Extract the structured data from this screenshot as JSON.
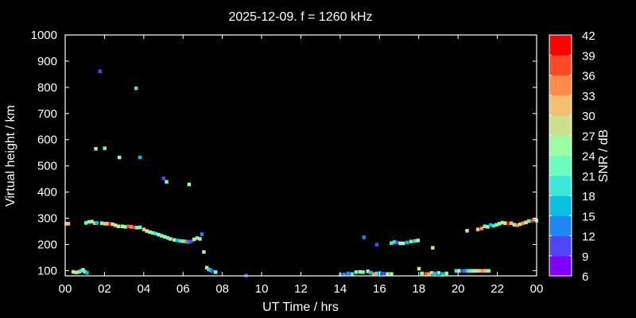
{
  "chart_data": {
    "type": "scatter",
    "title": "2025-12-09. f = 1260 kHz",
    "xlabel": "UT Time / hrs",
    "ylabel": "Virtual height / km",
    "xlim": [
      0,
      24
    ],
    "ylim": [
      80,
      1000
    ],
    "xticks": [
      "00",
      "02",
      "04",
      "06",
      "08",
      "10",
      "12",
      "14",
      "16",
      "18",
      "20",
      "22",
      "00"
    ],
    "yticks": [
      100,
      200,
      300,
      400,
      500,
      600,
      700,
      800,
      900,
      1000
    ],
    "colorbar": {
      "label": "SNR / dB",
      "ticks": [
        6,
        9,
        12,
        15,
        18,
        21,
        24,
        27,
        30,
        33,
        36,
        39,
        42
      ],
      "colors": [
        "#7f00ff",
        "#5046f8",
        "#1e88f0",
        "#0ac0e0",
        "#3ce8d6",
        "#6cfcbc",
        "#9cfca4",
        "#cce08c",
        "#f2c070",
        "#ff8a4c",
        "#ff4a26",
        "#ff0000"
      ]
    },
    "points_fields": [
      "hour",
      "height_km",
      "snr_db"
    ],
    "points": [
      [
        0.05,
        280,
        31
      ],
      [
        0.15,
        280,
        30
      ],
      [
        0.4,
        96,
        27
      ],
      [
        0.55,
        94,
        27
      ],
      [
        0.7,
        96,
        21
      ],
      [
        0.8,
        100,
        18
      ],
      [
        0.9,
        104,
        21
      ],
      [
        1.0,
        96,
        24
      ],
      [
        1.1,
        93,
        15
      ],
      [
        1.05,
        283,
        21
      ],
      [
        1.2,
        287,
        21
      ],
      [
        1.35,
        288,
        24
      ],
      [
        1.5,
        282,
        30
      ],
      [
        1.6,
        283,
        15
      ],
      [
        1.85,
        282,
        21
      ],
      [
        2.0,
        280,
        30
      ],
      [
        2.15,
        280,
        30
      ],
      [
        2.3,
        280,
        39
      ],
      [
        2.4,
        278,
        27
      ],
      [
        2.55,
        274,
        27
      ],
      [
        2.7,
        270,
        24
      ],
      [
        2.9,
        270,
        24
      ],
      [
        3.05,
        268,
        24
      ],
      [
        3.2,
        270,
        36
      ],
      [
        3.35,
        268,
        33
      ],
      [
        3.5,
        266,
        36
      ],
      [
        3.65,
        265,
        21
      ],
      [
        3.8,
        266,
        21
      ],
      [
        4.0,
        258,
        30
      ],
      [
        4.15,
        252,
        27
      ],
      [
        4.3,
        248,
        24
      ],
      [
        4.45,
        245,
        21
      ],
      [
        4.6,
        242,
        18
      ],
      [
        4.75,
        238,
        24
      ],
      [
        4.9,
        234,
        21
      ],
      [
        5.05,
        230,
        24
      ],
      [
        5.2,
        226,
        21
      ],
      [
        5.35,
        222,
        27
      ],
      [
        5.55,
        218,
        24
      ],
      [
        5.7,
        216,
        15
      ],
      [
        5.85,
        214,
        18
      ],
      [
        6.0,
        213,
        21
      ],
      [
        6.15,
        212,
        33
      ],
      [
        6.25,
        210,
        12
      ],
      [
        6.4,
        212,
        9
      ],
      [
        6.55,
        220,
        27
      ],
      [
        6.7,
        225,
        21
      ],
      [
        6.85,
        222,
        27
      ],
      [
        6.95,
        240,
        12
      ],
      [
        7.05,
        172,
        27
      ],
      [
        7.2,
        112,
        27
      ],
      [
        7.3,
        105,
        18
      ],
      [
        7.4,
        102,
        15
      ],
      [
        7.5,
        98,
        9
      ],
      [
        7.65,
        95,
        21
      ],
      [
        1.76,
        862,
        9
      ],
      [
        3.6,
        797,
        18
      ],
      [
        1.55,
        566,
        27
      ],
      [
        2.0,
        568,
        21
      ],
      [
        2.75,
        533,
        24
      ],
      [
        3.8,
        533,
        15
      ],
      [
        5.0,
        453,
        9
      ],
      [
        5.15,
        440,
        21
      ],
      [
        6.3,
        430,
        24
      ],
      [
        9.2,
        82,
        9
      ],
      [
        14.0,
        85,
        12
      ],
      [
        14.2,
        86,
        12
      ],
      [
        14.4,
        90,
        12
      ],
      [
        14.6,
        88,
        18
      ],
      [
        14.8,
        95,
        21
      ],
      [
        15.0,
        96,
        24
      ],
      [
        15.15,
        95,
        21
      ],
      [
        15.4,
        98,
        27
      ],
      [
        15.55,
        93,
        15
      ],
      [
        15.7,
        88,
        33
      ],
      [
        15.85,
        90,
        18
      ],
      [
        16.0,
        92,
        12
      ],
      [
        16.2,
        90,
        9
      ],
      [
        16.4,
        88,
        24
      ],
      [
        16.6,
        88,
        24
      ],
      [
        15.2,
        228,
        12
      ],
      [
        15.85,
        200,
        9
      ],
      [
        16.6,
        206,
        18
      ],
      [
        16.75,
        210,
        18
      ],
      [
        16.9,
        208,
        9
      ],
      [
        17.05,
        205,
        24
      ],
      [
        17.2,
        205,
        24
      ],
      [
        17.4,
        208,
        15
      ],
      [
        17.6,
        212,
        21
      ],
      [
        17.8,
        214,
        18
      ],
      [
        17.95,
        216,
        24
      ],
      [
        18.0,
        108,
        27
      ],
      [
        18.15,
        90,
        24
      ],
      [
        18.35,
        88,
        36
      ],
      [
        18.5,
        88,
        33
      ],
      [
        18.65,
        92,
        21
      ],
      [
        18.8,
        90,
        15
      ],
      [
        19.0,
        92,
        21
      ],
      [
        19.2,
        88,
        15
      ],
      [
        19.4,
        90,
        24
      ],
      [
        18.7,
        188,
        27
      ],
      [
        19.9,
        100,
        18
      ],
      [
        20.05,
        100,
        24
      ],
      [
        20.2,
        100,
        9
      ],
      [
        20.35,
        100,
        12
      ],
      [
        20.5,
        100,
        18
      ],
      [
        20.65,
        100,
        21
      ],
      [
        20.8,
        100,
        24
      ],
      [
        20.95,
        100,
        27
      ],
      [
        21.1,
        100,
        30
      ],
      [
        21.25,
        100,
        33
      ],
      [
        21.4,
        100,
        30
      ],
      [
        21.55,
        100,
        21
      ],
      [
        20.45,
        253,
        27
      ],
      [
        21.0,
        258,
        30
      ],
      [
        21.2,
        262,
        33
      ],
      [
        21.35,
        270,
        21
      ],
      [
        21.5,
        268,
        24
      ],
      [
        21.65,
        275,
        15
      ],
      [
        21.8,
        272,
        18
      ],
      [
        21.95,
        276,
        21
      ],
      [
        22.1,
        280,
        24
      ],
      [
        22.25,
        284,
        27
      ],
      [
        22.4,
        282,
        24
      ],
      [
        22.55,
        280,
        39
      ],
      [
        22.7,
        282,
        30
      ],
      [
        22.85,
        276,
        24
      ],
      [
        23.0,
        274,
        33
      ],
      [
        23.15,
        278,
        27
      ],
      [
        23.3,
        282,
        33
      ],
      [
        23.45,
        285,
        24
      ],
      [
        23.6,
        290,
        21
      ],
      [
        23.75,
        292,
        36
      ],
      [
        23.9,
        296,
        33
      ],
      [
        23.98,
        292,
        21
      ]
    ]
  }
}
